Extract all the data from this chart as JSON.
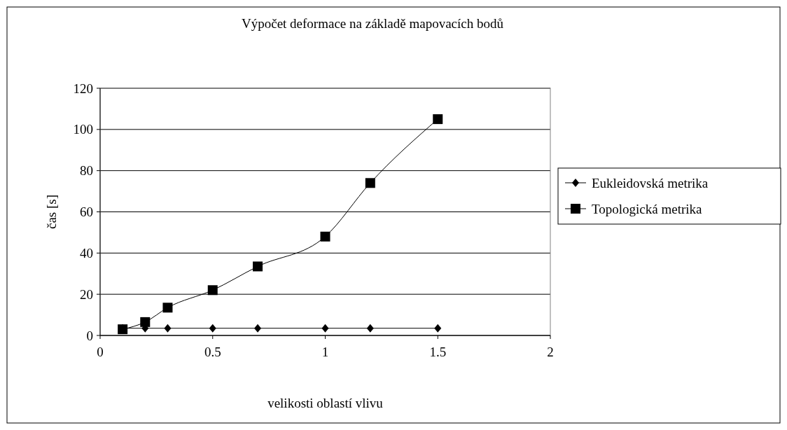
{
  "chart_data": {
    "type": "line",
    "title": "Výpočet deformace na základě mapovacích bodů",
    "xlabel": "velikosti oblastí vlivu",
    "ylabel": "čas [s]",
    "x": [
      0.1,
      0.2,
      0.3,
      0.5,
      0.7,
      1,
      1.2,
      1.5
    ],
    "series": [
      {
        "name": "Eukleidovská metrika",
        "color": "#000000",
        "marker": "diamond",
        "values": [
          3.5,
          3.5,
          3.5,
          3.5,
          3.5,
          3.5,
          3.5,
          3.5
        ]
      },
      {
        "name": "Topologická metrika",
        "color": "#000000",
        "marker": "square",
        "values": [
          3,
          6.5,
          13.5,
          22,
          33.5,
          48,
          74,
          105
        ]
      }
    ],
    "xlim": [
      0,
      2
    ],
    "xticks": [
      0,
      0.5,
      1,
      1.5,
      2
    ],
    "ylim": [
      0,
      120
    ],
    "yticks": [
      0,
      20,
      40,
      60,
      80,
      100,
      120
    ],
    "grid": "y",
    "legend": "right",
    "line_style": "solid"
  }
}
